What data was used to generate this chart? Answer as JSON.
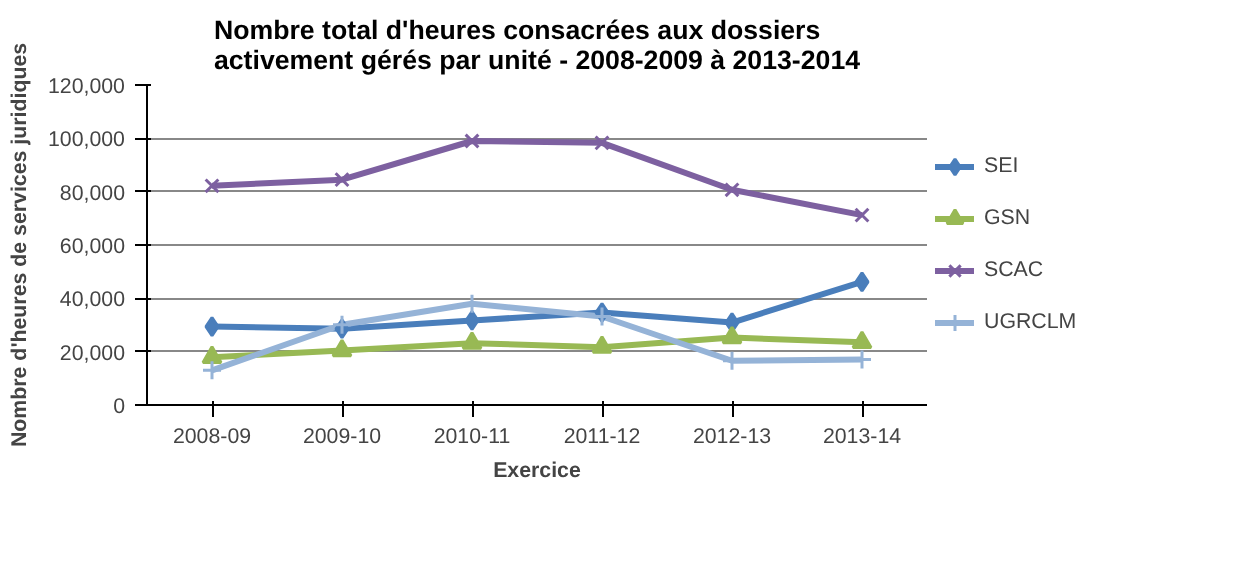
{
  "chart_data": {
    "type": "line",
    "title": "Nombre total d'heures consacrées aux dossiers\nactivement gérés par unité - 2008-2009 à 2013-2014",
    "xlabel": "Exercice",
    "ylabel": "Nombre d'heures de services juridiques",
    "categories": [
      "2008-09",
      "2009-10",
      "2010-11",
      "2011-12",
      "2012-13",
      "2013-14"
    ],
    "series": [
      {
        "name": "SEI",
        "color": "#4a7ebb",
        "marker": "diamond",
        "values": [
          29400,
          28600,
          31700,
          34700,
          30900,
          46200
        ]
      },
      {
        "name": "GSN",
        "color": "#98b954",
        "marker": "triangle",
        "values": [
          17900,
          20400,
          23200,
          21700,
          25300,
          23500
        ]
      },
      {
        "name": "SCAC",
        "color": "#7d60a0",
        "marker": "x",
        "values": [
          82200,
          84500,
          99000,
          98300,
          80700,
          71200
        ]
      },
      {
        "name": "UGRCLM",
        "color": "#95b3d7",
        "marker": "cross",
        "values": [
          13000,
          30100,
          38000,
          33200,
          16600,
          17100
        ]
      }
    ],
    "ylim": [
      0,
      120000
    ],
    "yticks": [
      {
        "value": 0,
        "label": "0"
      },
      {
        "value": 20000,
        "label": "20,000"
      },
      {
        "value": 40000,
        "label": "40,000"
      },
      {
        "value": 60000,
        "label": "60,000"
      },
      {
        "value": 80000,
        "label": "80,000"
      },
      {
        "value": 100000,
        "label": "100,000"
      },
      {
        "value": 120000,
        "label": "120,000"
      }
    ],
    "grid": "y",
    "legend": "right"
  }
}
